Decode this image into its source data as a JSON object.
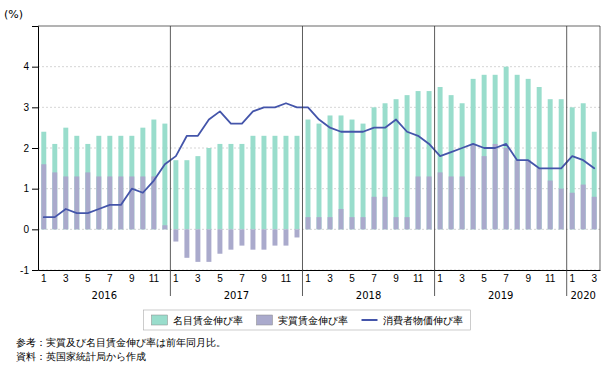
{
  "chart_data": {
    "type": "bar",
    "ylabel": "(%)",
    "categories": [
      "1",
      null,
      "3",
      null,
      "5",
      null,
      "7",
      null,
      "9",
      null,
      "11",
      null,
      "1",
      null,
      "3",
      null,
      "5",
      null,
      "7",
      null,
      "9",
      null,
      "11",
      null,
      "1",
      null,
      "3",
      null,
      "5",
      null,
      "7",
      null,
      "9",
      null,
      "11",
      null,
      "1",
      null,
      "3",
      null,
      "5",
      null,
      "7",
      null,
      "9",
      null,
      "11",
      null,
      "1",
      null,
      "3"
    ],
    "series": [
      {
        "name": "名目賃金伸び率",
        "type": "bar",
        "color": "#99ddcc",
        "values": [
          2.4,
          2.1,
          2.5,
          2.3,
          2.1,
          2.3,
          2.3,
          2.3,
          2.3,
          2.5,
          2.7,
          2.6,
          1.7,
          1.7,
          1.8,
          2.0,
          2.1,
          2.1,
          2.1,
          2.3,
          2.3,
          2.3,
          2.3,
          2.3,
          2.7,
          2.6,
          2.8,
          2.8,
          2.7,
          2.6,
          3.0,
          3.1,
          3.2,
          3.3,
          3.4,
          3.4,
          3.5,
          3.3,
          3.1,
          3.7,
          3.8,
          3.8,
          4.0,
          3.8,
          3.7,
          3.5,
          3.2,
          3.2,
          3.0,
          3.1,
          2.4
        ]
      },
      {
        "name": "実質賃金伸び率",
        "type": "bar",
        "color": "#aaaacc",
        "values": [
          1.6,
          1.4,
          1.3,
          1.3,
          1.4,
          1.3,
          1.3,
          1.3,
          1.3,
          1.3,
          1.3,
          0.1,
          -0.3,
          -0.7,
          -0.8,
          -0.8,
          -0.6,
          -0.5,
          -0.4,
          -0.5,
          -0.5,
          -0.4,
          -0.4,
          -0.2,
          0.3,
          0.3,
          0.3,
          0.5,
          0.3,
          0.3,
          0.8,
          0.8,
          0.3,
          0.3,
          1.3,
          1.3,
          1.4,
          1.3,
          1.3,
          2.1,
          1.8,
          2.1,
          2.0,
          1.7,
          1.7,
          1.5,
          1.2,
          1.0,
          0.9,
          1.1,
          0.8
        ]
      },
      {
        "name": "消費者物価伸び率",
        "type": "line",
        "color": "#4455aa",
        "values": [
          0.3,
          0.3,
          0.5,
          0.4,
          0.4,
          0.5,
          0.6,
          0.6,
          1.0,
          0.9,
          1.2,
          1.6,
          1.8,
          2.3,
          2.3,
          2.7,
          2.9,
          2.6,
          2.6,
          2.9,
          3.0,
          3.0,
          3.1,
          3.0,
          3.0,
          2.7,
          2.5,
          2.4,
          2.4,
          2.4,
          2.5,
          2.5,
          2.7,
          2.4,
          2.3,
          2.1,
          1.8,
          1.9,
          2.0,
          2.1,
          2.0,
          2.0,
          2.1,
          1.7,
          1.7,
          1.5,
          1.5,
          1.5,
          1.8,
          1.7,
          1.5
        ]
      }
    ],
    "ylim": [
      -1,
      5
    ],
    "yticks": [
      -1,
      0,
      1,
      2,
      3,
      4
    ],
    "grid": true,
    "legend": "bottom",
    "annotations": [
      "2016",
      "2017",
      "2018",
      "2019",
      "2020",
      "参考：実質及び名目賃金伸び率は前年同月比。",
      "資料：英国家統計局から作成"
    ]
  }
}
